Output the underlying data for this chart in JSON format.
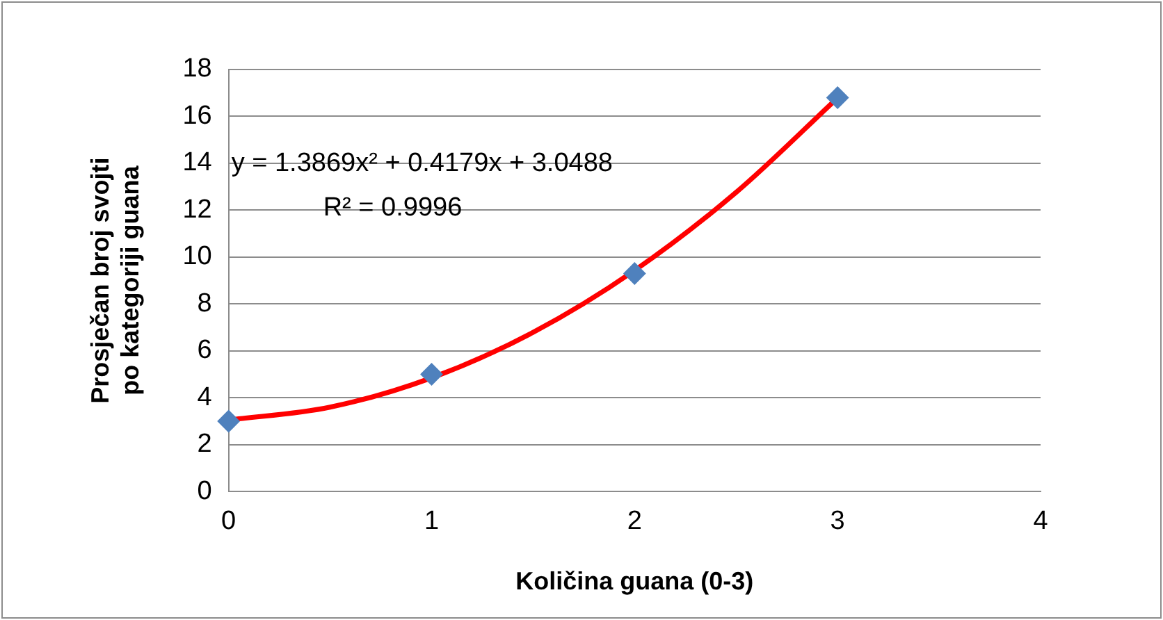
{
  "chart_data": {
    "type": "scatter",
    "xlabel": "Količina guana (0-3)",
    "ylabel": "Prosječan broj svojti po kategoriji guana",
    "x": [
      0,
      1,
      2,
      3
    ],
    "series": [
      {
        "color": "#4f81bd",
        "values": [
          3,
          5,
          9.3,
          16.8
        ],
        "marker": "diamond"
      },
      {
        "type": "line",
        "color": "#ff0000",
        "x": [
          0,
          0.5,
          1,
          1.5,
          2,
          2.5,
          3
        ],
        "values": [
          3.05,
          3.6,
          4.85,
          6.79,
          9.43,
          12.76,
          16.79
        ],
        "marker": "none",
        "line_style": "solid"
      }
    ],
    "annotations": [
      "y = 1.3869x² + 0.4179x + 3.0488",
      "R² = 0.9996"
    ],
    "xlim": [
      0,
      4
    ],
    "xticks": [
      0,
      1,
      2,
      3,
      4
    ],
    "ylim": [
      0,
      18
    ],
    "yticks": [
      0,
      2,
      4,
      6,
      8,
      10,
      12,
      14,
      16,
      18
    ],
    "grid": "y",
    "legend": false
  }
}
